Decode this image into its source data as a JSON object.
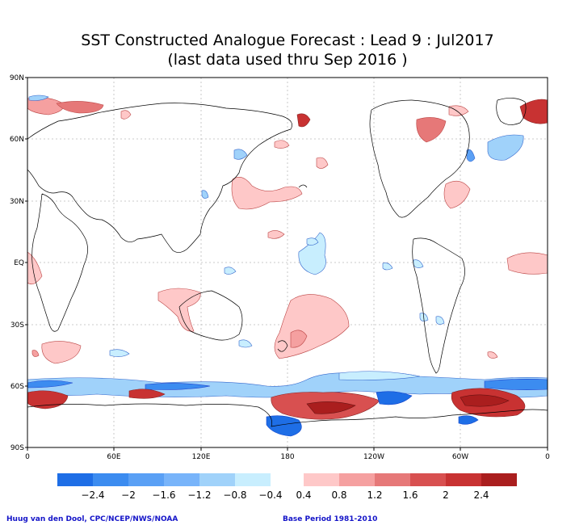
{
  "title": {
    "line1": "SST Constructed Analogue Forecast : Lead 9 : Jul2017",
    "line2": "(last data used thru Sep 2016 )"
  },
  "axes": {
    "lat_labels": [
      "90N",
      "60N",
      "30N",
      "EQ",
      "30S",
      "60S",
      "90S"
    ],
    "lon_labels": [
      "0",
      "60E",
      "120E",
      "180",
      "120W",
      "60W",
      "0"
    ]
  },
  "colorbar": {
    "neg_colors": [
      "#1e6ee6",
      "#3c8cf0",
      "#5aa0f5",
      "#78b4fa",
      "#a0d2fa",
      "#c8eefe"
    ],
    "pos_colors": [
      "#fec8c8",
      "#f5a0a0",
      "#e67878",
      "#d85050",
      "#c83232",
      "#aa1e1e"
    ],
    "neg_labels": [
      "−2.4",
      "−2",
      "−1.6",
      "−1.2",
      "−0.8",
      "−0.4"
    ],
    "pos_labels": [
      "0.4",
      "0.8",
      "1.2",
      "1.6",
      "2",
      "2.4"
    ]
  },
  "footer": {
    "credit": "Huug van den Dool, CPC/NCEP/NWS/NOAA",
    "base_period": "Base Period 1981-2010"
  }
}
